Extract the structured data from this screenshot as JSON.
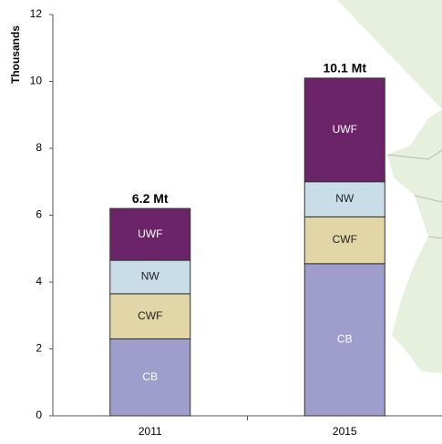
{
  "chart_data": {
    "type": "stacked-bar",
    "y_label": "Thousands",
    "categories": [
      "2011",
      "2015"
    ],
    "series": [
      {
        "name": "CB",
        "color": "#9f9dcc",
        "label_color": "#ffffff",
        "values": [
          2.3,
          4.55
        ]
      },
      {
        "name": "CWF",
        "color": "#e3d6a6",
        "label_color": "#222222",
        "values": [
          1.35,
          1.4
        ]
      },
      {
        "name": "NW",
        "color": "#c9dde8",
        "label_color": "#222222",
        "values": [
          1.0,
          1.05
        ]
      },
      {
        "name": "UWF",
        "color": "#6b2468",
        "label_color": "#ffffff",
        "values": [
          1.55,
          3.1
        ]
      }
    ],
    "total_labels": [
      "6.2 Mt",
      "10.1 Mt"
    ],
    "ylim": [
      0,
      12
    ],
    "yticks": [
      0,
      2,
      4,
      6,
      8,
      10,
      12
    ]
  }
}
